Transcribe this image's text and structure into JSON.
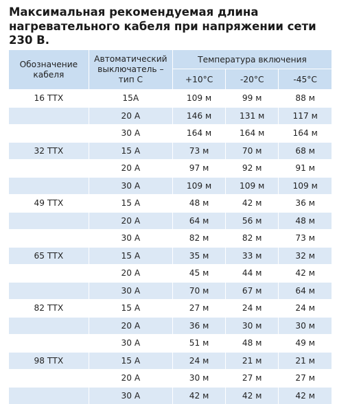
{
  "title": "Максимальная рекомендуемая длина нагревательного кабеля при напряжении сети 230 В.",
  "table": {
    "headers": {
      "cable": "Обозначение кабеля",
      "breaker": "Автоматический выключатель – тип С",
      "temp_group": "Температура включения",
      "temps": [
        "+10°C",
        "-20°C",
        "-45°C"
      ]
    },
    "groups": [
      {
        "cable": "16 ТТХ",
        "rows": [
          [
            "15A",
            "109 м",
            "99 м",
            "88 м"
          ],
          [
            "20 A",
            "146 м",
            "131 м",
            "117 м"
          ],
          [
            "30 A",
            "164 м",
            "164 м",
            "164 м"
          ]
        ]
      },
      {
        "cable": "32 ТТХ",
        "rows": [
          [
            "15 A",
            "73 м",
            "70 м",
            "68 м"
          ],
          [
            "20 A",
            "97 м",
            "92 м",
            "91 м"
          ],
          [
            "30 A",
            "109 м",
            "109 м",
            "109 м"
          ]
        ]
      },
      {
        "cable": "49 ТТХ",
        "rows": [
          [
            "15 A",
            "48 м",
            "42 м",
            "36 м"
          ],
          [
            "20 A",
            "64 м",
            "56 м",
            "48 м"
          ],
          [
            "30 A",
            "82 м",
            "82 м",
            "73 м"
          ]
        ]
      },
      {
        "cable": "65 ТТХ",
        "rows": [
          [
            "15 A",
            "35 м",
            "33 м",
            "32 м"
          ],
          [
            "20 A",
            "45 м",
            "44 м",
            "42 м"
          ],
          [
            "30 A",
            "70 м",
            "67 м",
            "64 м"
          ]
        ]
      },
      {
        "cable": "82 ТТХ",
        "rows": [
          [
            "15 A",
            "27 м",
            "24 м",
            "24 м"
          ],
          [
            "20 A",
            "36 м",
            "30 м",
            "30 м"
          ],
          [
            "30 A",
            "51 м",
            "48 м",
            "49 м"
          ]
        ]
      },
      {
        "cable": "98 ТТХ",
        "rows": [
          [
            "15 A",
            "24 м",
            "21 м",
            "21 м"
          ],
          [
            "20 A",
            "30 м",
            "27 м",
            "27 м"
          ],
          [
            "30 A",
            "42 м",
            "42 м",
            "42 м"
          ]
        ]
      }
    ]
  }
}
